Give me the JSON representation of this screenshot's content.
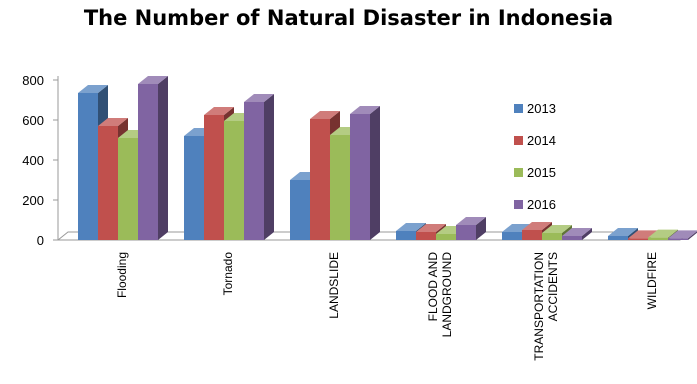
{
  "chart_data": {
    "type": "bar",
    "title": "The Number of Natural Disaster in Indonesia",
    "categories": [
      [
        "Flooding"
      ],
      [
        "Tornado"
      ],
      [
        "LANDSLIDE"
      ],
      [
        "FLOOD AND",
        "LANDGROUND"
      ],
      [
        "TRANSPORTATION",
        "ACCIDENTS"
      ],
      [
        "WILDFIRE"
      ]
    ],
    "series": [
      {
        "name": "2013",
        "color": "#4F81BD",
        "values": [
          735,
          520,
          300,
          45,
          40,
          20
        ]
      },
      {
        "name": "2014",
        "color": "#C0504D",
        "values": [
          570,
          625,
          605,
          40,
          50,
          8
        ]
      },
      {
        "name": "2015",
        "color": "#9BBB59",
        "values": [
          510,
          595,
          525,
          30,
          35,
          12
        ]
      },
      {
        "name": "2016",
        "color": "#8064A2",
        "values": [
          780,
          690,
          630,
          75,
          20,
          8
        ]
      }
    ],
    "ylim": [
      0,
      800
    ],
    "yticks": [
      0,
      200,
      400,
      600,
      800
    ],
    "legend_position": "right",
    "grid": false
  }
}
